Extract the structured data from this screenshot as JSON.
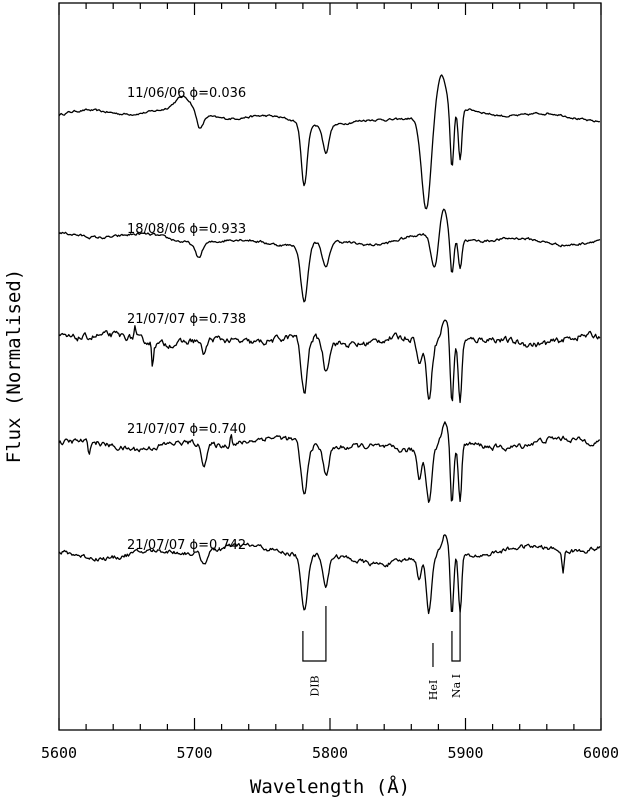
{
  "chart_data": {
    "type": "line",
    "title": "",
    "xlabel": "Wavelength (Å)",
    "ylabel": "Flux (Normalised)",
    "xlim": [
      5600,
      6000
    ],
    "xticks": [
      "5600",
      "5700",
      "5800",
      "5900",
      "6000"
    ],
    "grid": false,
    "series": [
      {
        "name": "11/06/06 ϕ=0.036",
        "baseline": 0,
        "features": [
          {
            "center": 5692,
            "depth": -0.14,
            "width": 6
          },
          {
            "center": 5704,
            "depth": 0.17,
            "width": 2.5
          },
          {
            "center": 5781,
            "depth": 0.65,
            "width": 2.2
          },
          {
            "center": 5797,
            "depth": 0.28,
            "width": 2.2
          },
          {
            "center": 5871,
            "depth": 1.0,
            "width": 3.5
          },
          {
            "center": 5882,
            "depth": -0.38,
            "width": 3.5
          },
          {
            "center": 5890,
            "depth": 0.64,
            "width": 1.3
          },
          {
            "center": 5896,
            "depth": 0.55,
            "width": 1.3
          }
        ]
      },
      {
        "name": "18/08/06 ϕ=0.933",
        "baseline": -1.3,
        "features": [
          {
            "center": 5703,
            "depth": 0.15,
            "width": 2.5
          },
          {
            "center": 5781,
            "depth": 0.6,
            "width": 2.6
          },
          {
            "center": 5797,
            "depth": 0.28,
            "width": 2.5
          },
          {
            "center": 5877,
            "depth": 0.35,
            "width": 2.5
          },
          {
            "center": 5884,
            "depth": -0.28,
            "width": 2.5
          },
          {
            "center": 5890,
            "depth": 0.4,
            "width": 1.3
          },
          {
            "center": 5896,
            "depth": 0.3,
            "width": 1.3
          }
        ]
      },
      {
        "name": "21/07/07 ϕ=0.738",
        "baseline": -2.35,
        "features": [
          {
            "center": 5656,
            "depth": -0.12,
            "width": 0.6
          },
          {
            "center": 5669,
            "depth": 0.25,
            "width": 0.6
          },
          {
            "center": 5707,
            "depth": 0.15,
            "width": 2
          },
          {
            "center": 5781,
            "depth": 0.6,
            "width": 2.3
          },
          {
            "center": 5797,
            "depth": 0.32,
            "width": 2.1
          },
          {
            "center": 5866,
            "depth": 0.28,
            "width": 1.6
          },
          {
            "center": 5873,
            "depth": 0.6,
            "width": 2
          },
          {
            "center": 5885,
            "depth": -0.25,
            "width": 2.5
          },
          {
            "center": 5890,
            "depth": 0.65,
            "width": 1.2
          },
          {
            "center": 5896,
            "depth": 0.65,
            "width": 1.2
          }
        ]
      },
      {
        "name": "21/07/07 ϕ=0.740",
        "baseline": -3.45,
        "features": [
          {
            "center": 5622,
            "depth": 0.14,
            "width": 0.8
          },
          {
            "center": 5707,
            "depth": 0.2,
            "width": 2
          },
          {
            "center": 5727,
            "depth": -0.12,
            "width": 0.8
          },
          {
            "center": 5781,
            "depth": 0.55,
            "width": 2.3
          },
          {
            "center": 5797,
            "depth": 0.28,
            "width": 2.1
          },
          {
            "center": 5866,
            "depth": 0.3,
            "width": 1.6
          },
          {
            "center": 5873,
            "depth": 0.55,
            "width": 2
          },
          {
            "center": 5885,
            "depth": -0.25,
            "width": 2.5
          },
          {
            "center": 5890,
            "depth": 0.65,
            "width": 1.2
          },
          {
            "center": 5896,
            "depth": 0.6,
            "width": 1.2
          }
        ]
      },
      {
        "name": "21/07/07 ϕ=0.742",
        "baseline": -4.6,
        "features": [
          {
            "center": 5707,
            "depth": 0.12,
            "width": 2
          },
          {
            "center": 5781,
            "depth": 0.6,
            "width": 2.3
          },
          {
            "center": 5797,
            "depth": 0.32,
            "width": 2.1
          },
          {
            "center": 5866,
            "depth": 0.25,
            "width": 1.6
          },
          {
            "center": 5873,
            "depth": 0.6,
            "width": 2
          },
          {
            "center": 5885,
            "depth": -0.2,
            "width": 2.5
          },
          {
            "center": 5890,
            "depth": 0.65,
            "width": 1.2
          },
          {
            "center": 5896,
            "depth": 0.6,
            "width": 1.2
          },
          {
            "center": 5972,
            "depth": 0.25,
            "width": 0.8
          }
        ]
      }
    ],
    "line_identifications": [
      {
        "label": "DIB",
        "wavelengths": [
          5780,
          5797
        ]
      },
      {
        "label": "HeI",
        "wavelengths": [
          5876
        ]
      },
      {
        "label": "Na I",
        "wavelengths": [
          5890,
          5896
        ]
      }
    ]
  }
}
